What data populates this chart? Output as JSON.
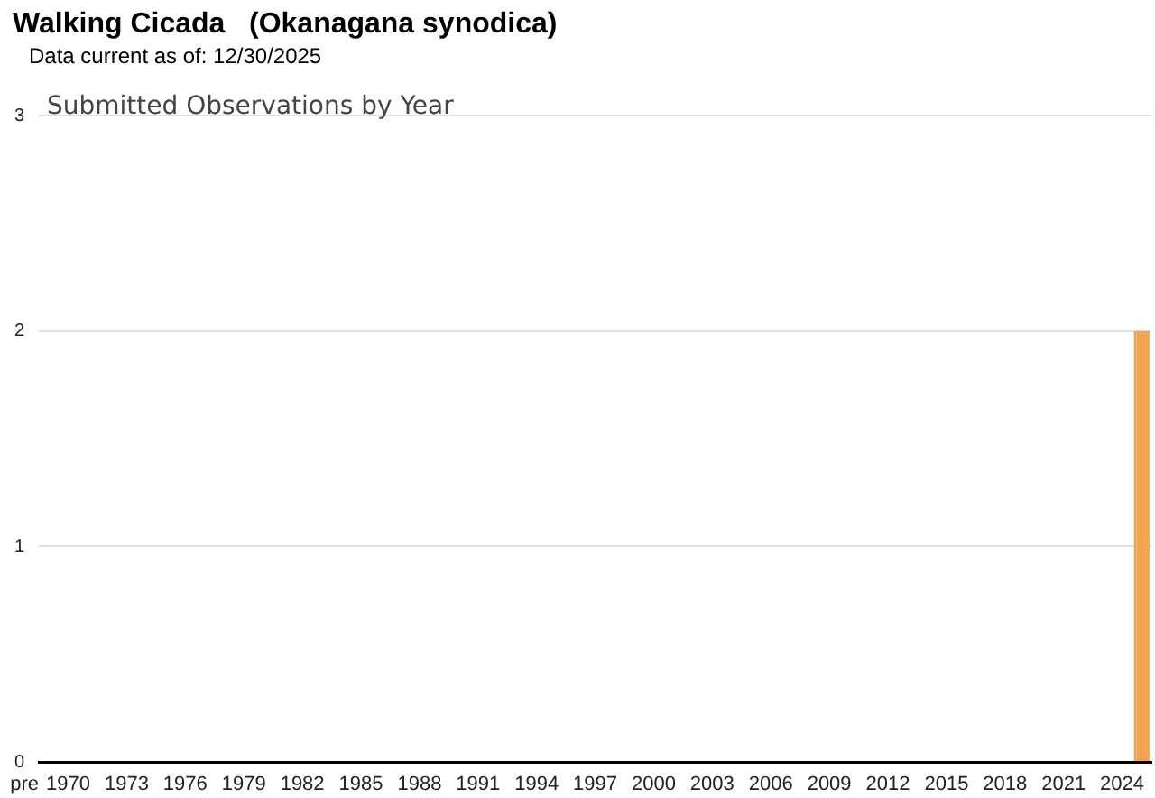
{
  "chart_data": {
    "type": "bar",
    "title": "Walking Cicada   (Okanagana synodica)",
    "subtitle": "Data current as of: 12/30/2025",
    "annotations": [
      "Submitted Observations by Year"
    ],
    "categories": [
      "pre",
      "1970",
      null,
      null,
      "1973",
      null,
      null,
      "1976",
      null,
      null,
      "1979",
      null,
      null,
      "1982",
      null,
      null,
      "1985",
      null,
      null,
      "1988",
      null,
      null,
      "1991",
      null,
      null,
      "1994",
      null,
      null,
      "1997",
      null,
      null,
      "2000",
      null,
      null,
      "2003",
      null,
      null,
      "2006",
      null,
      null,
      "2009",
      null,
      null,
      "2012",
      null,
      null,
      "2015",
      null,
      null,
      "2018",
      null,
      null,
      "2021",
      null,
      null,
      "2024",
      null
    ],
    "values": [
      0,
      0,
      0,
      0,
      0,
      0,
      0,
      0,
      0,
      0,
      0,
      0,
      0,
      0,
      0,
      0,
      0,
      0,
      0,
      0,
      0,
      0,
      0,
      0,
      0,
      0,
      0,
      0,
      0,
      0,
      0,
      0,
      0,
      0,
      0,
      0,
      0,
      0,
      0,
      0,
      0,
      0,
      0,
      0,
      0,
      0,
      0,
      0,
      0,
      0,
      0,
      0,
      0,
      0,
      0,
      0,
      2
    ],
    "color": "#f0a44c",
    "ylim": [
      0,
      3
    ],
    "yticks": [
      0,
      1,
      2,
      3
    ],
    "grid": "y"
  }
}
